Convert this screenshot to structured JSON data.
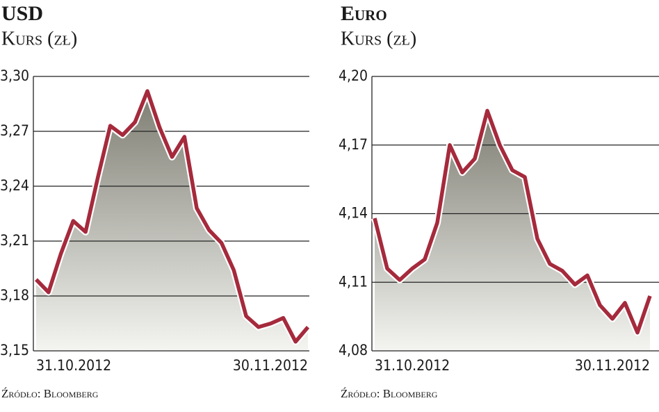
{
  "chart_data": [
    {
      "type": "area",
      "title": "USD",
      "subtitle": "Kurs (zł)",
      "source": "Źródło: Bloomberg",
      "categories": [
        "31.10.2012",
        null,
        null,
        null,
        null,
        null,
        null,
        null,
        null,
        null,
        null,
        null,
        null,
        null,
        null,
        null,
        null,
        null,
        null,
        null,
        null,
        null,
        "30.11.2012"
      ],
      "values": [
        3.189,
        3.182,
        3.203,
        3.221,
        3.215,
        3.245,
        3.273,
        3.268,
        3.275,
        3.292,
        3.272,
        3.256,
        3.267,
        3.228,
        3.216,
        3.209,
        3.194,
        3.169,
        3.163,
        3.165,
        3.168,
        3.155,
        3.163
      ],
      "color": "#a52a3c",
      "grid": true,
      "ylim": [
        3.15,
        3.3
      ],
      "yticks": [
        {
          "value": 3.15,
          "label": "3,15"
        },
        {
          "value": 3.18,
          "label": "3,18"
        },
        {
          "value": 3.21,
          "label": "3,21"
        },
        {
          "value": 3.24,
          "label": "3,24"
        },
        {
          "value": 3.27,
          "label": "3,27"
        },
        {
          "value": 3.3,
          "label": "3,30"
        }
      ]
    },
    {
      "type": "area",
      "title": "Euro",
      "subtitle": "Kurs (zł)",
      "source": "Źródło: Bloomberg",
      "categories": [
        "31.10.2012",
        null,
        null,
        null,
        null,
        null,
        null,
        null,
        null,
        null,
        null,
        null,
        null,
        null,
        null,
        null,
        null,
        null,
        null,
        null,
        null,
        null,
        "30.11.2012"
      ],
      "values": [
        4.138,
        4.116,
        4.111,
        4.116,
        4.12,
        4.136,
        4.17,
        4.158,
        4.164,
        4.185,
        4.17,
        4.159,
        4.156,
        4.129,
        4.118,
        4.115,
        4.109,
        4.113,
        4.1,
        4.094,
        4.101,
        4.088,
        4.104
      ],
      "color": "#a52a3c",
      "grid": true,
      "ylim": [
        4.08,
        4.2
      ],
      "yticks": [
        {
          "value": 4.08,
          "label": "4,08"
        },
        {
          "value": 4.11,
          "label": "4,11"
        },
        {
          "value": 4.14,
          "label": "4,14"
        },
        {
          "value": 4.17,
          "label": "4,17"
        },
        {
          "value": 4.2,
          "label": "4,20"
        }
      ]
    }
  ]
}
